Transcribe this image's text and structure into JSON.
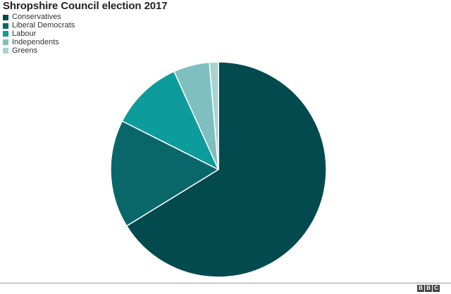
{
  "chart_data": {
    "type": "pie",
    "title": "Shropshire Council election 2017",
    "legend_position": "top-left",
    "categories": [
      "Conservatives",
      "Liberal Democrats",
      "Labour",
      "Independents",
      "Greens"
    ],
    "values": [
      49,
      12,
      8,
      4,
      1
    ],
    "colors": [
      "#034a4f",
      "#0a6769",
      "#0d9b9b",
      "#7fbfbf",
      "#a9d3d3"
    ],
    "start_angle_deg": 0,
    "direction": "clockwise"
  },
  "logo": {
    "letters": [
      "B",
      "B",
      "C"
    ]
  }
}
